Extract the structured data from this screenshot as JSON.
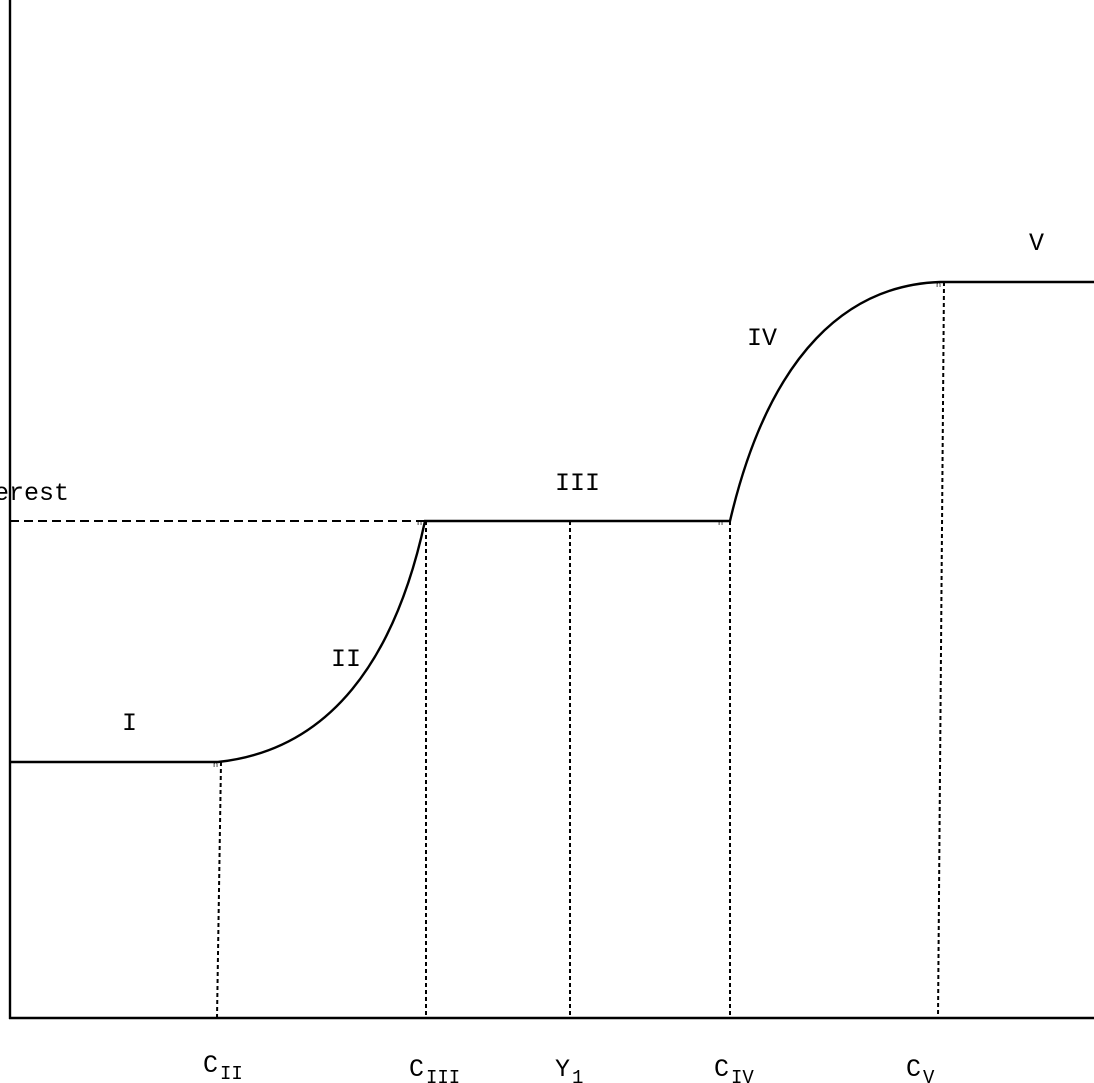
{
  "regions": {
    "r1": "I",
    "r2": "II",
    "r3": "III",
    "r4": "IV",
    "r5": "V"
  },
  "left_label": "erest",
  "x_ticks": [
    {
      "main": "C",
      "sub": "II"
    },
    {
      "main": "C",
      "sub": "III"
    },
    {
      "main": "Y",
      "sub": "1"
    },
    {
      "main": "C",
      "sub": "IV"
    },
    {
      "main": "C",
      "sub": "V"
    }
  ],
  "node_mark": "n"
}
